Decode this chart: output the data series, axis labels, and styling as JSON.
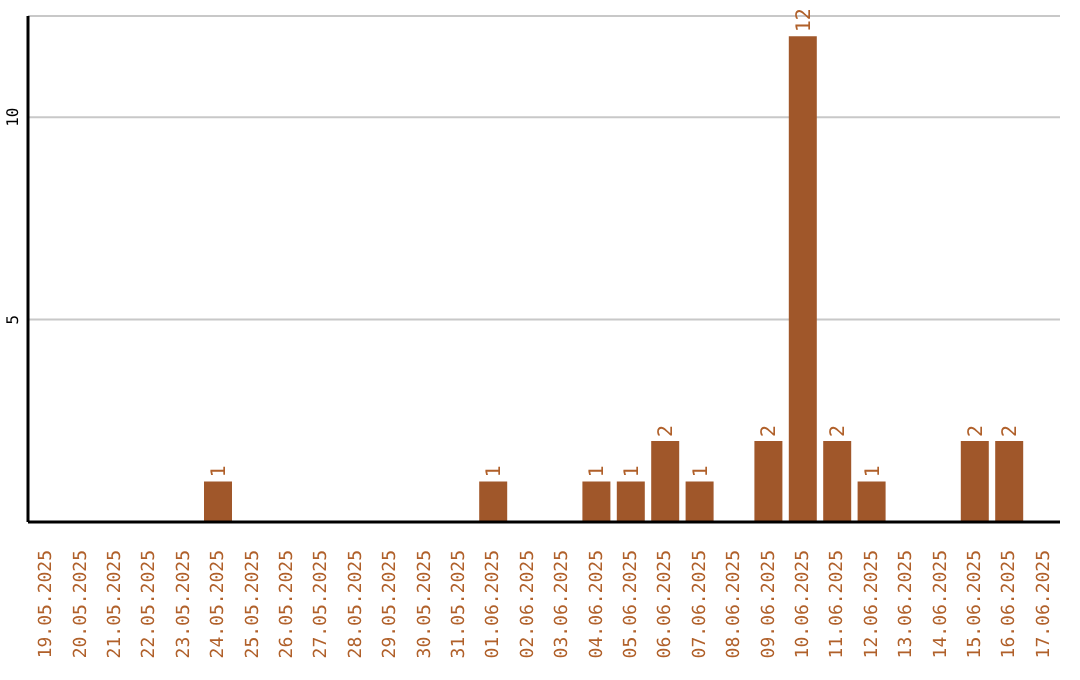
{
  "chart_data": {
    "type": "bar",
    "categories": [
      "19.05.2025",
      "20.05.2025",
      "21.05.2025",
      "22.05.2025",
      "23.05.2025",
      "24.05.2025",
      "25.05.2025",
      "26.05.2025",
      "27.05.2025",
      "28.05.2025",
      "29.05.2025",
      "30.05.2025",
      "31.05.2025",
      "01.06.2025",
      "02.06.2025",
      "03.06.2025",
      "04.06.2025",
      "05.06.2025",
      "06.06.2025",
      "07.06.2025",
      "08.06.2025",
      "09.06.2025",
      "10.06.2025",
      "11.06.2025",
      "12.06.2025",
      "13.06.2025",
      "14.06.2025",
      "15.06.2025",
      "16.06.2025",
      "17.06.2025"
    ],
    "values": [
      0,
      0,
      0,
      0,
      0,
      1,
      0,
      0,
      0,
      0,
      0,
      0,
      0,
      1,
      0,
      0,
      1,
      1,
      2,
      1,
      0,
      2,
      12,
      2,
      1,
      0,
      0,
      2,
      2,
      0
    ],
    "value_labels": [
      null,
      null,
      null,
      null,
      null,
      "1",
      null,
      null,
      null,
      null,
      null,
      null,
      null,
      "1",
      null,
      null,
      "1",
      "1",
      "2",
      "1",
      null,
      "2",
      "12",
      "2",
      "1",
      null,
      null,
      "2",
      "2",
      null
    ],
    "color": "#a0572a",
    "ylim": [
      0,
      12.5
    ],
    "yticks": [
      5,
      10
    ],
    "grid": "y"
  }
}
